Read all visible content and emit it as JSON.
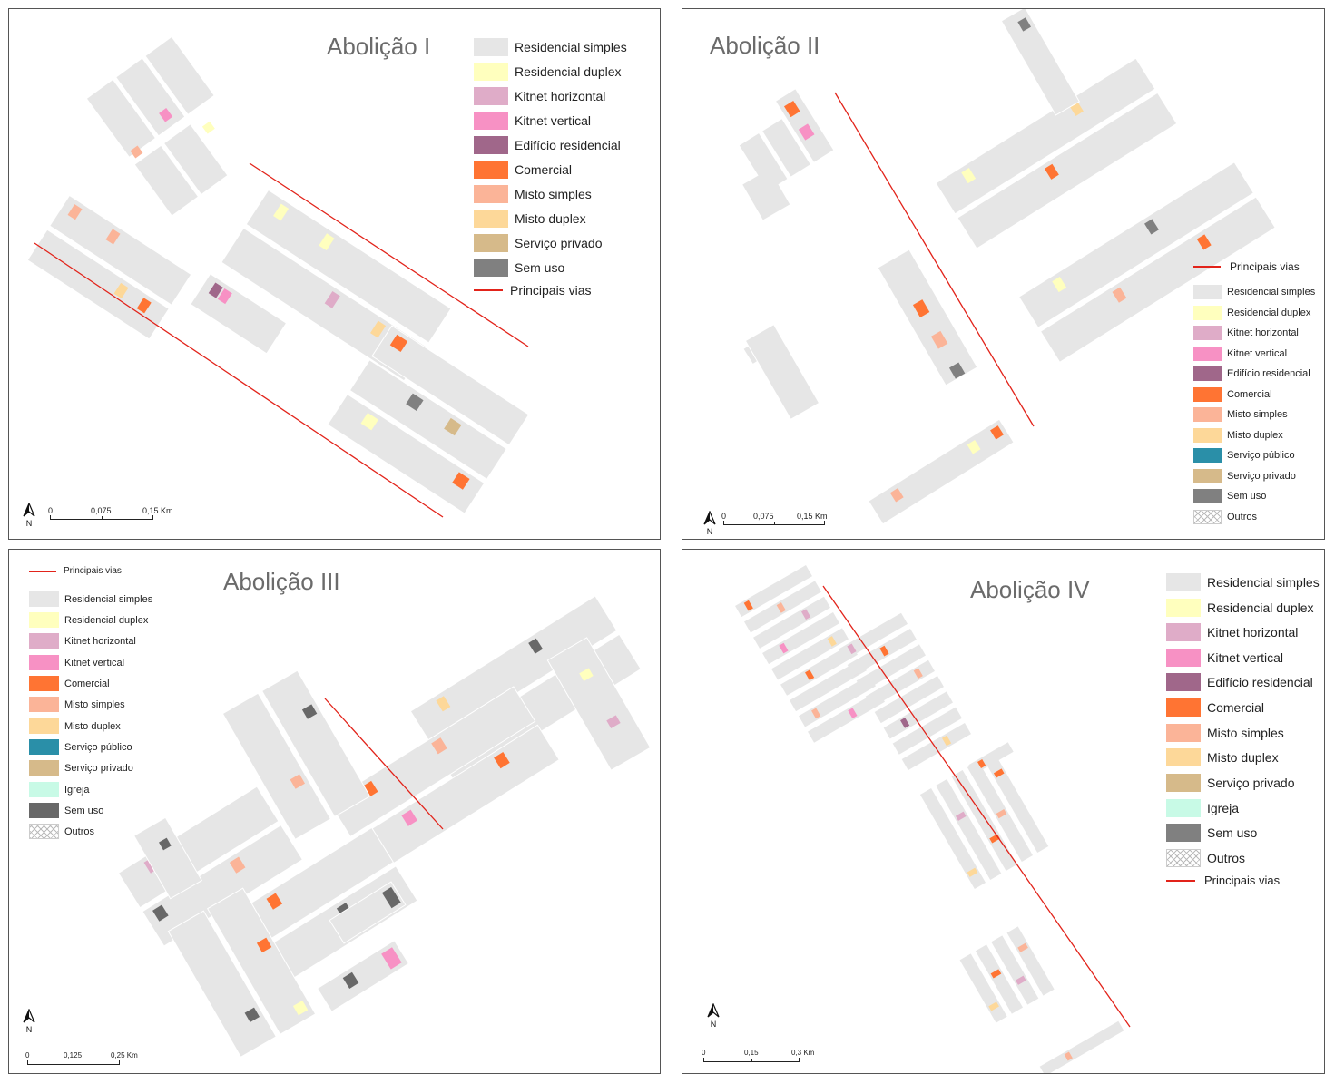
{
  "panels": [
    {
      "title": "Abolição I",
      "legend": [
        {
          "label": "Residencial simples",
          "color": "#e6e6e6"
        },
        {
          "label": "Residencial duplex",
          "color": "#ffffbe"
        },
        {
          "label": "Kitnet horizontal",
          "color": "#dfacc8"
        },
        {
          "label": "Kitnet vertical",
          "color": "#f791c4"
        },
        {
          "label": "Edifício residencial",
          "color": "#a0678a"
        },
        {
          "label": "Comercial",
          "color": "#ff7433"
        },
        {
          "label": "Misto simples",
          "color": "#fbb498"
        },
        {
          "label": "Misto duplex",
          "color": "#fdd899"
        },
        {
          "label": "Serviço privado",
          "color": "#d6ba8a"
        },
        {
          "label": "Sem uso",
          "color": "#808080"
        },
        {
          "label": "Principais vias",
          "color": "#e2231a",
          "line": true
        }
      ],
      "scale": [
        "0",
        "0,075",
        "0,15 Km"
      ],
      "north": "N"
    },
    {
      "title": "Abolição II",
      "legend": [
        {
          "label": "Principais vias",
          "color": "#e2231a",
          "line": true
        },
        {
          "label": "Residencial simples",
          "color": "#e6e6e6"
        },
        {
          "label": "Residencial duplex",
          "color": "#ffffbe"
        },
        {
          "label": "Kitnet horizontal",
          "color": "#dfacc8"
        },
        {
          "label": "Kitnet vertical",
          "color": "#f791c4"
        },
        {
          "label": "Edifício residencial",
          "color": "#a0678a"
        },
        {
          "label": "Comercial",
          "color": "#ff7433"
        },
        {
          "label": "Misto simples",
          "color": "#fbb498"
        },
        {
          "label": "Misto duplex",
          "color": "#fdd899"
        },
        {
          "label": "Serviço público",
          "color": "#2a8fa8"
        },
        {
          "label": "Serviço privado",
          "color": "#d6ba8a"
        },
        {
          "label": "Sem uso",
          "color": "#808080"
        },
        {
          "label": "Outros",
          "color": "hatch"
        }
      ],
      "scale": [
        "0",
        "0,075",
        "0,15 Km"
      ],
      "north": "N"
    },
    {
      "title": "Abolição III",
      "legend": [
        {
          "label": "Principais vias",
          "color": "#e2231a",
          "line": true
        },
        {
          "label": "Residencial simples",
          "color": "#e6e6e6"
        },
        {
          "label": "Residencial duplex",
          "color": "#ffffbe"
        },
        {
          "label": "Kitnet horizontal",
          "color": "#dfacc8"
        },
        {
          "label": "Kitnet vertical",
          "color": "#f791c4"
        },
        {
          "label": "Comercial",
          "color": "#ff7433"
        },
        {
          "label": "Misto simples",
          "color": "#fbb498"
        },
        {
          "label": "Misto duplex",
          "color": "#fdd899"
        },
        {
          "label": "Serviço público",
          "color": "#2a8fa8"
        },
        {
          "label": "Serviço privado",
          "color": "#d6ba8a"
        },
        {
          "label": "Igreja",
          "color": "#c8fae6"
        },
        {
          "label": "Sem uso",
          "color": "#686868"
        },
        {
          "label": "Outros",
          "color": "hatch"
        }
      ],
      "scale": [
        "0",
        "0,125",
        "0,25 Km"
      ],
      "north": "N"
    },
    {
      "title": "Abolição IV",
      "legend": [
        {
          "label": "Residencial simples",
          "color": "#e6e6e6"
        },
        {
          "label": "Residencial duplex",
          "color": "#ffffbe"
        },
        {
          "label": "Kitnet horizontal",
          "color": "#dfacc8"
        },
        {
          "label": "Kitnet vertical",
          "color": "#f791c4"
        },
        {
          "label": "Edifício residencial",
          "color": "#a0678a"
        },
        {
          "label": "Comercial",
          "color": "#ff7433"
        },
        {
          "label": "Misto simples",
          "color": "#fbb498"
        },
        {
          "label": "Misto duplex",
          "color": "#fdd899"
        },
        {
          "label": "Serviço privado",
          "color": "#d6ba8a"
        },
        {
          "label": "Igreja",
          "color": "#c8fae6"
        },
        {
          "label": "Sem uso",
          "color": "#808080"
        },
        {
          "label": "Outros",
          "color": "hatch"
        },
        {
          "label": "Principais vias",
          "color": "#e2231a",
          "line": true
        }
      ],
      "scale": [
        "0",
        "0,15",
        "0,3 Km"
      ],
      "north": "N"
    }
  ]
}
